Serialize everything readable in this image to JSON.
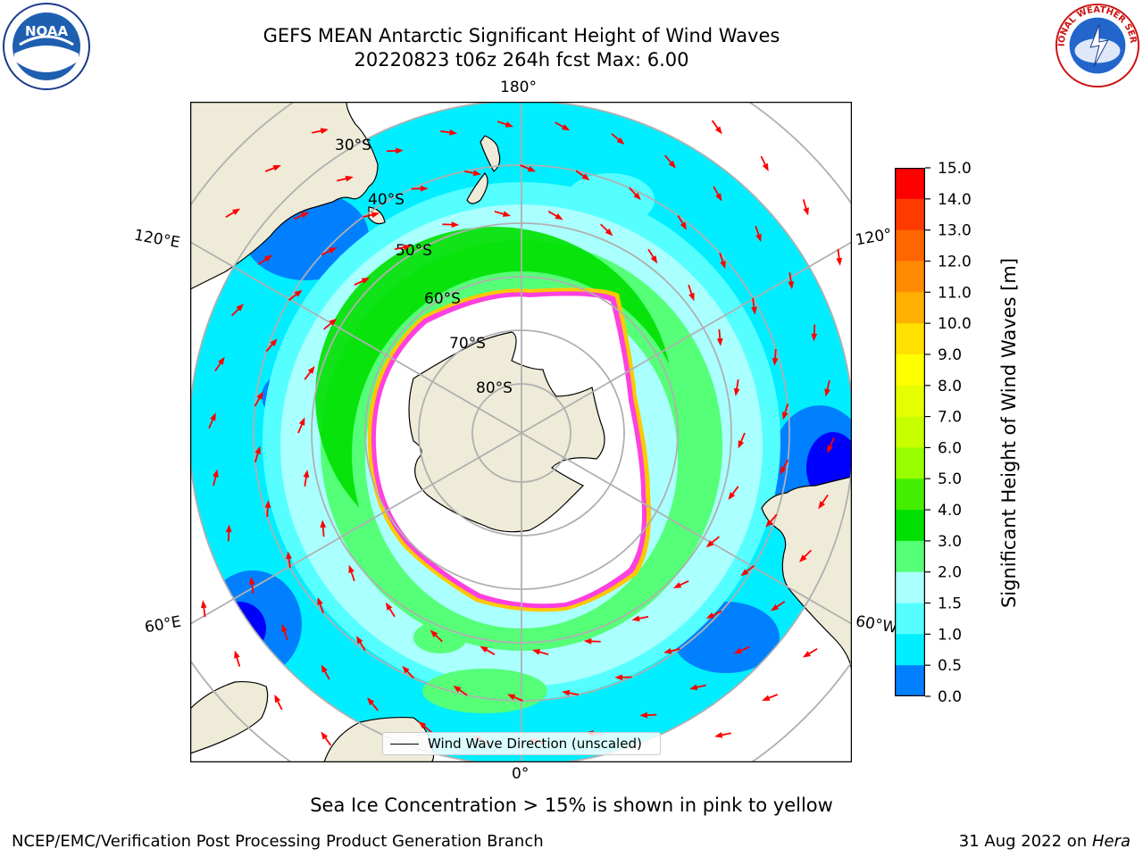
{
  "header": {
    "title_line1": "GEFS MEAN Antarctic Significant Height of Wind Waves",
    "title_line2": "20220823 t06z 264h fcst   Max: 6.00"
  },
  "logos": {
    "left": "noaa-logo",
    "left_text": "NOAA",
    "right": "nws-logo",
    "right_text": "NATIONAL WEATHER SERVICE"
  },
  "map": {
    "projection": "south-polar-stereographic",
    "longitude_labels": [
      "180°",
      "120°E",
      "120°",
      "60°E",
      "60°W",
      "0°"
    ],
    "latitude_labels": [
      "30°S",
      "40°S",
      "50°S",
      "60°S",
      "70°S",
      "80°S"
    ],
    "colors": {
      "land": "#efebd9",
      "ice": "#ffffff",
      "gridline": "#b0b0b0",
      "arrow": "#ff0000",
      "ice_edge_pink": "#ff40e0",
      "ice_edge_yellow": "#ffc800"
    }
  },
  "legend": {
    "label": "Wind Wave Direction (unscaled)"
  },
  "colorbar": {
    "label": "Significant Height of Wind Waves [m]",
    "ticks": [
      "15.0",
      "14.0",
      "13.0",
      "12.0",
      "11.0",
      "10.0",
      "9.0",
      "8.0",
      "7.0",
      "6.0",
      "5.0",
      "4.0",
      "3.0",
      "2.0",
      "1.5",
      "1.0",
      "0.5",
      "0.0"
    ],
    "colors": [
      "#ff0000",
      "#ff3a00",
      "#ff6600",
      "#ff8c00",
      "#ffb000",
      "#ffe000",
      "#ffff00",
      "#e6ff00",
      "#c8ff00",
      "#99ff00",
      "#44ee00",
      "#00e000",
      "#55ff77",
      "#aaffff",
      "#55ffff",
      "#00eeff",
      "#0080ff",
      "#0000ff"
    ]
  },
  "caption": "Sea Ice Concentration > 15% is shown in pink to yellow",
  "footer": {
    "left": "NCEP/EMC/Verification Post Processing Product Generation Branch",
    "right_date": "31 Aug 2022 on ",
    "right_host": "Hera"
  }
}
